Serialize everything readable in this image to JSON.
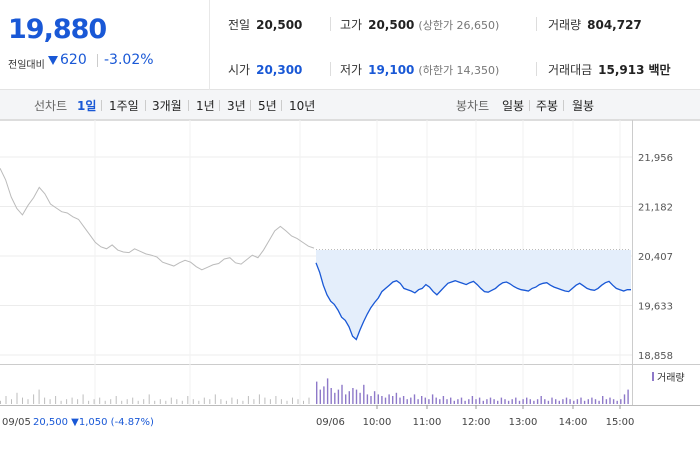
{
  "summary": {
    "price": "19,880",
    "prev_label": "전일대비",
    "change": "620",
    "change_rate": "-3.02%"
  },
  "stats": {
    "prev_close": {
      "label": "전일",
      "value": "20,500"
    },
    "high": {
      "label": "고가",
      "value": "20,500",
      "sub": "(상한가 26,650)"
    },
    "volume": {
      "label": "거래량",
      "value": "804,727"
    },
    "open": {
      "label": "시가",
      "value": "20,300"
    },
    "low": {
      "label": "저가",
      "value": "19,100",
      "sub": "(하한가 14,350)"
    },
    "amount": {
      "label": "거래대금",
      "value": "15,913",
      "unit": "백만"
    }
  },
  "toolbar": {
    "line_label": "선차트",
    "line_periods": [
      "1일",
      "1주일",
      "3개월",
      "1년",
      "3년",
      "5년",
      "10년"
    ],
    "active_period": "1일",
    "candle_label": "봉차트",
    "candle_periods": [
      "일봉",
      "주봉",
      "월봉"
    ]
  },
  "colors": {
    "accent": "#1958d6",
    "prev_day_line": "#bbbbbb",
    "today_fill": "#e4eefb",
    "volume_today": "#8e79c9",
    "volume_prev": "#bdbdbd"
  },
  "chart_data": {
    "type": "line",
    "y_ticks": [
      "21,956",
      "21,182",
      "20,407",
      "19,633",
      "18,858"
    ],
    "ylim": [
      18858,
      21956
    ],
    "reference_price": 20500,
    "prev_day_label": "09/05",
    "prev_day_info": "20,500 ▼1,050 (-4.87%)",
    "today_label": "09/06",
    "time_ticks": [
      "10:00",
      "11:00",
      "12:00",
      "13:00",
      "14:00",
      "15:00"
    ],
    "volume_legend": "거래량",
    "prev_day_series": {
      "name": "09/05",
      "values": [
        21780,
        21600,
        21330,
        21150,
        21050,
        21200,
        21320,
        21480,
        21380,
        21220,
        21160,
        21100,
        21080,
        21020,
        20980,
        20860,
        20740,
        20620,
        20550,
        20520,
        20580,
        20500,
        20470,
        20460,
        20520,
        20480,
        20440,
        20420,
        20390,
        20310,
        20280,
        20250,
        20300,
        20340,
        20310,
        20240,
        20190,
        20230,
        20270,
        20290,
        20360,
        20380,
        20300,
        20280,
        20350,
        20420,
        20380,
        20500,
        20650,
        20800,
        20870,
        20800,
        20720,
        20680,
        20620,
        20560,
        20530
      ]
    },
    "today_series": {
      "name": "09/06",
      "values": [
        20300,
        20150,
        19950,
        19800,
        19700,
        19650,
        19560,
        19450,
        19400,
        19300,
        19150,
        19100,
        19250,
        19380,
        19500,
        19600,
        19680,
        19750,
        19850,
        19900,
        19950,
        20000,
        20020,
        19980,
        19900,
        19880,
        19860,
        19830,
        19880,
        19900,
        19960,
        19920,
        19850,
        19800,
        19860,
        19920,
        19980,
        20000,
        20020,
        20000,
        19980,
        19960,
        19990,
        20010,
        19960,
        19900,
        19850,
        19840,
        19870,
        19900,
        19950,
        19990,
        20000,
        19970,
        19930,
        19900,
        19880,
        19870,
        19860,
        19900,
        19920,
        19960,
        19980,
        19990,
        19950,
        19920,
        19900,
        19880,
        19860,
        19850,
        19900,
        19950,
        19980,
        19940,
        19900,
        19880,
        19870,
        19900,
        19950,
        19990,
        20010,
        19950,
        19900,
        19880,
        19860,
        19880,
        19880
      ]
    },
    "volume_prev": [
      2,
      5,
      3,
      7,
      4,
      3,
      6,
      9,
      4,
      3,
      5,
      2,
      3,
      4,
      3,
      6,
      2,
      3,
      4,
      2,
      3,
      5,
      2,
      3,
      4,
      2,
      3,
      6,
      2,
      3,
      2,
      4,
      3,
      2,
      5,
      3,
      2,
      4,
      3,
      6,
      3,
      2,
      4,
      3,
      2,
      5,
      3,
      6,
      4,
      3,
      5,
      3,
      2,
      4,
      3,
      2,
      4
    ],
    "volume_today": [
      14,
      9,
      11,
      16,
      10,
      7,
      9,
      12,
      6,
      8,
      10,
      9,
      7,
      12,
      6,
      5,
      8,
      6,
      5,
      4,
      6,
      5,
      7,
      4,
      5,
      3,
      4,
      6,
      3,
      5,
      4,
      3,
      6,
      4,
      3,
      5,
      3,
      4,
      2,
      3,
      4,
      2,
      3,
      5,
      3,
      4,
      2,
      3,
      4,
      3,
      2,
      4,
      3,
      2,
      3,
      4,
      2,
      3,
      4,
      3,
      2,
      3,
      5,
      3,
      2,
      4,
      3,
      2,
      3,
      4,
      3,
      2,
      3,
      4,
      2,
      3,
      4,
      3,
      2,
      5,
      3,
      4,
      3,
      2,
      3,
      6,
      9
    ]
  }
}
